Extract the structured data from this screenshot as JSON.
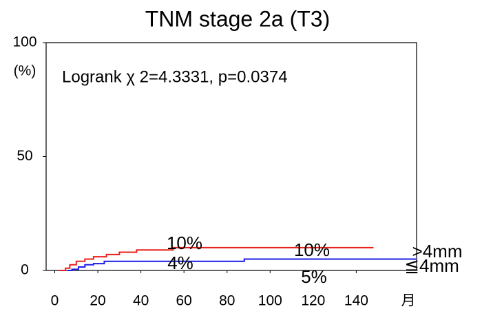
{
  "chart_data": {
    "type": "step",
    "title": "TNM stage 2a (T3)",
    "ylabel": "(%)",
    "xlabel": "月",
    "stat_text": "Logrank  χ 2=4.3331, p=0.0374",
    "xlim": [
      -4,
      168
    ],
    "xticks": [
      0,
      20,
      40,
      60,
      80,
      100,
      120,
      140
    ],
    "ylim": [
      0,
      100
    ],
    "yticks": [
      0,
      50,
      100
    ],
    "series": [
      {
        "name": ">4mm",
        "color": "#e8201c",
        "x": [
          2,
          5,
          7,
          10,
          14,
          18,
          24,
          30,
          38,
          55,
          148
        ],
        "values": [
          0,
          1,
          2.5,
          4,
          5,
          6,
          7,
          8,
          9,
          10,
          10
        ]
      },
      {
        "name": "≦4mm",
        "color": "#1c1ce8",
        "x": [
          6,
          8,
          11,
          14,
          18,
          23,
          88,
          168
        ],
        "values": [
          0,
          0.5,
          1.5,
          2.5,
          3,
          4,
          5,
          5
        ]
      }
    ],
    "annotations": [
      "10%",
      "10%",
      "4%",
      "5%"
    ]
  }
}
